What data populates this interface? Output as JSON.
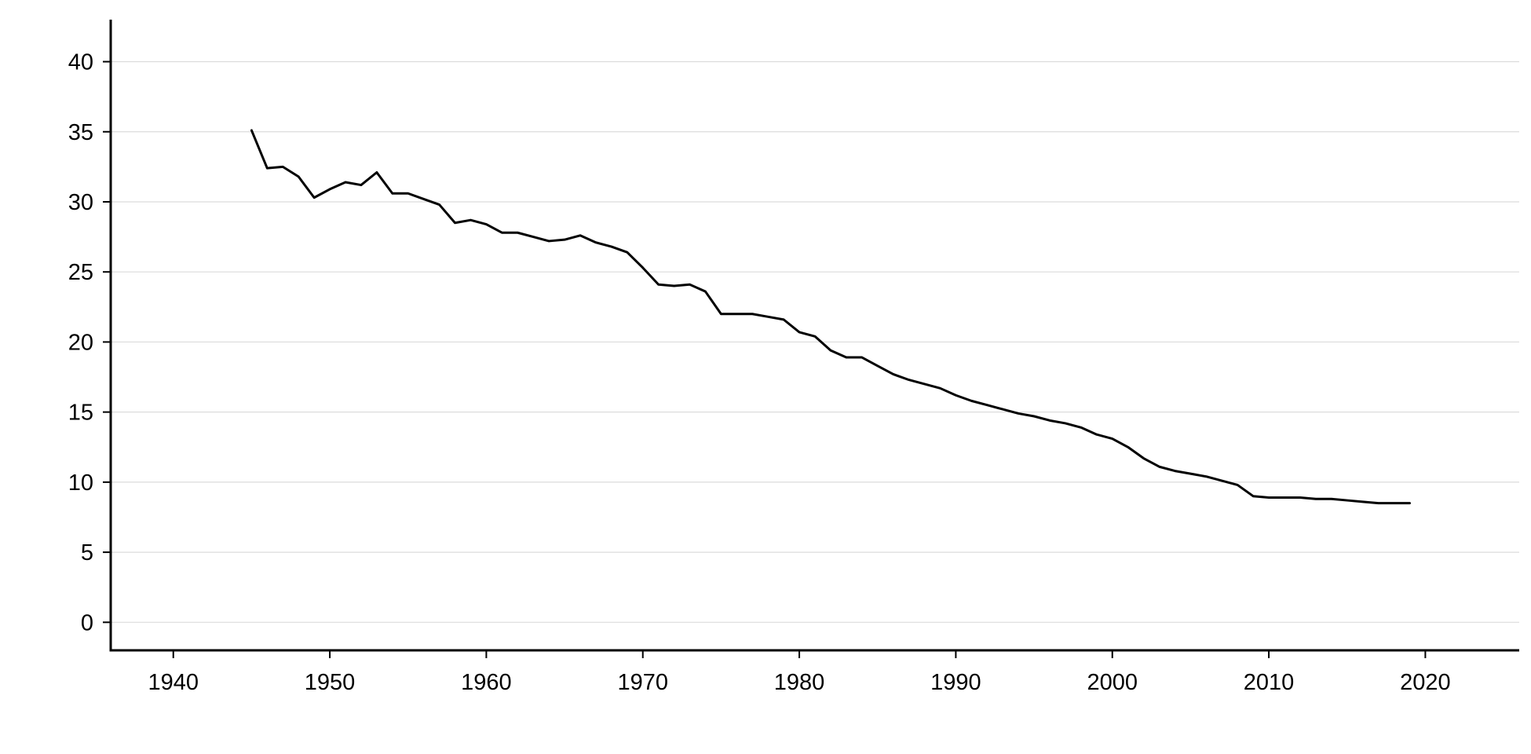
{
  "chart_data": {
    "type": "line",
    "title": "",
    "xlabel": "",
    "ylabel": "",
    "xlim": [
      1936,
      2026
    ],
    "ylim": [
      -2,
      43
    ],
    "x_ticks": [
      1940,
      1950,
      1960,
      1970,
      1980,
      1990,
      2000,
      2010,
      2020
    ],
    "y_ticks": [
      0,
      5,
      10,
      15,
      20,
      25,
      30,
      35,
      40
    ],
    "grid": "horizontal",
    "colors": {
      "line": "#000000",
      "grid": "#dcdcdc",
      "axis": "#000000"
    },
    "series": [
      {
        "x": [
          1945,
          1946,
          1947,
          1948,
          1949,
          1950,
          1951,
          1952,
          1953,
          1954,
          1955,
          1956,
          1957,
          1958,
          1959,
          1960,
          1961,
          1962,
          1963,
          1964,
          1965,
          1966,
          1967,
          1968,
          1969,
          1970,
          1971,
          1972,
          1973,
          1974,
          1975,
          1976,
          1977,
          1978,
          1979,
          1980,
          1981,
          1982,
          1983,
          1984,
          1985,
          1986,
          1987,
          1988,
          1989,
          1990,
          1991,
          1992,
          1993,
          1994,
          1995,
          1996,
          1997,
          1998,
          1999,
          2000,
          2001,
          2002,
          2003,
          2004,
          2005,
          2006,
          2007,
          2008,
          2009,
          2010,
          2011,
          2012,
          2013,
          2014,
          2015,
          2016,
          2017,
          2018,
          2019
        ],
        "values": [
          35.1,
          32.4,
          32.5,
          31.8,
          30.3,
          30.9,
          31.4,
          31.2,
          32.1,
          30.6,
          30.6,
          30.2,
          29.8,
          28.5,
          28.7,
          28.4,
          27.8,
          27.8,
          27.5,
          27.2,
          27.3,
          27.6,
          27.1,
          26.8,
          26.4,
          25.3,
          24.1,
          24.0,
          24.1,
          23.6,
          22.0,
          22.0,
          22.0,
          21.8,
          21.6,
          20.7,
          20.4,
          19.4,
          18.9,
          18.9,
          18.3,
          17.7,
          17.3,
          17.0,
          16.7,
          16.2,
          15.8,
          15.5,
          15.2,
          14.9,
          14.7,
          14.4,
          14.2,
          13.9,
          13.4,
          13.1,
          12.5,
          11.7,
          11.1,
          10.8,
          10.6,
          10.4,
          10.1,
          9.8,
          9.0,
          8.9,
          8.9,
          8.9,
          8.8,
          8.8,
          8.7,
          8.6,
          8.5,
          8.5,
          8.5
        ]
      }
    ]
  }
}
